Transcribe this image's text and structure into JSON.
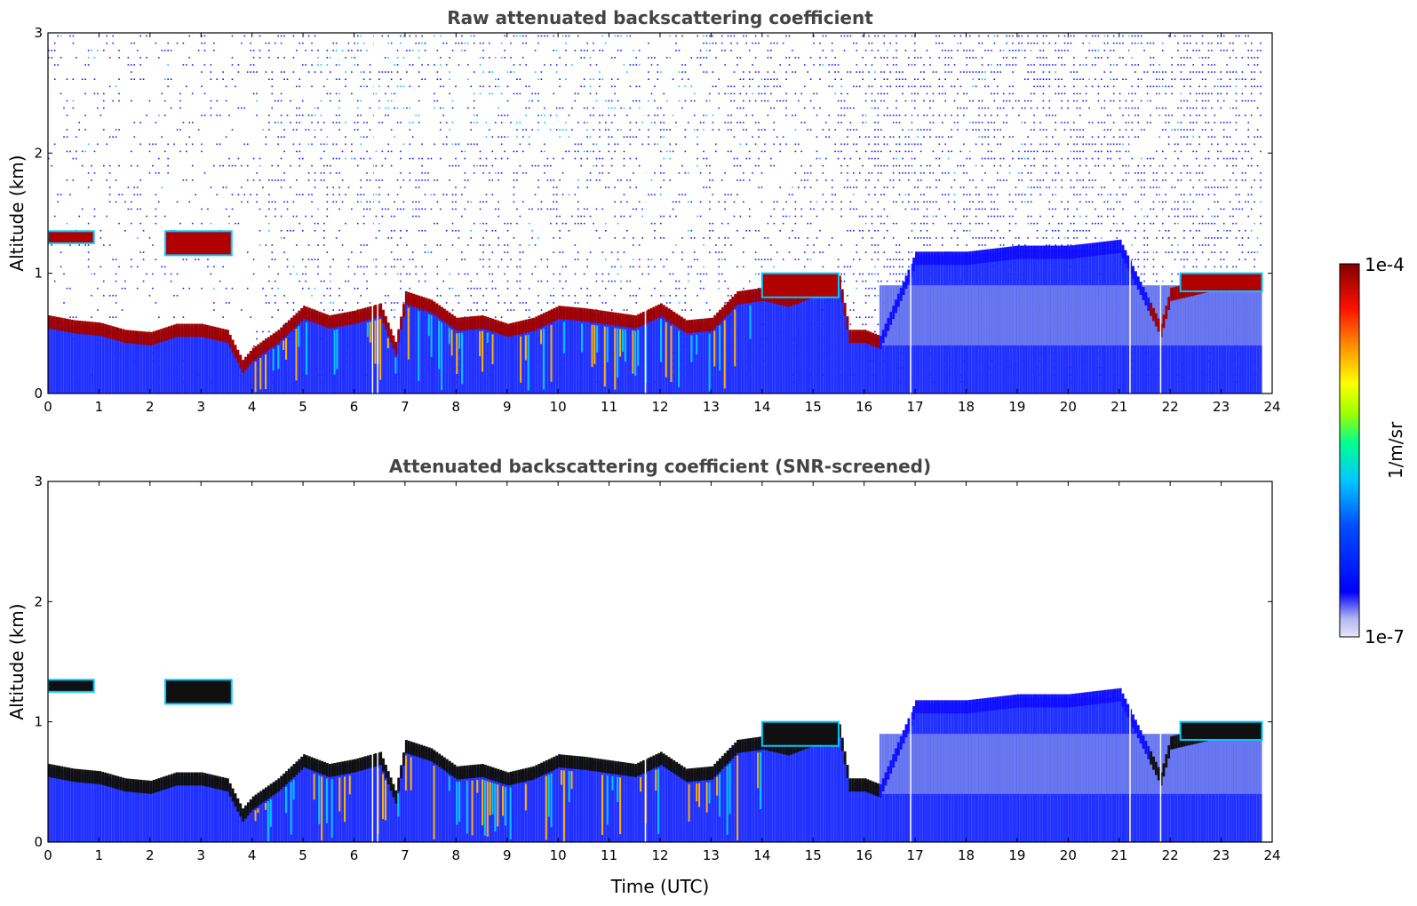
{
  "chart_data": [
    {
      "type": "heatmap",
      "title": "Raw attenuated backscattering coefficient",
      "ylabel": "Altitude (km)",
      "xlabel": "",
      "xlim": [
        0,
        24
      ],
      "ylim": [
        0,
        3
      ],
      "x_ticks": [
        "0",
        "1",
        "2",
        "3",
        "4",
        "5",
        "6",
        "7",
        "8",
        "9",
        "10",
        "11",
        "12",
        "13",
        "14",
        "15",
        "16",
        "17",
        "18",
        "19",
        "20",
        "21",
        "22",
        "23",
        "24"
      ],
      "y_ticks": [
        "0",
        "1",
        "2",
        "3"
      ],
      "noise_above_layer": true,
      "features": {
        "aerosol_layer_top_km": [
          [
            0,
            0.62
          ],
          [
            0.5,
            0.58
          ],
          [
            1,
            0.56
          ],
          [
            1.5,
            0.5
          ],
          [
            2,
            0.48
          ],
          [
            2.5,
            0.55
          ],
          [
            3,
            0.55
          ],
          [
            3.5,
            0.5
          ],
          [
            3.8,
            0.25
          ],
          [
            4,
            0.35
          ],
          [
            4.5,
            0.5
          ],
          [
            5,
            0.7
          ],
          [
            5.5,
            0.62
          ],
          [
            6,
            0.66
          ],
          [
            6.5,
            0.72
          ],
          [
            6.8,
            0.4
          ],
          [
            7,
            0.82
          ],
          [
            7.5,
            0.75
          ],
          [
            8,
            0.6
          ],
          [
            8.5,
            0.62
          ],
          [
            9,
            0.55
          ],
          [
            9.5,
            0.6
          ],
          [
            10,
            0.7
          ],
          [
            10.5,
            0.68
          ],
          [
            11,
            0.65
          ],
          [
            11.5,
            0.62
          ],
          [
            12,
            0.72
          ],
          [
            12.5,
            0.58
          ],
          [
            13,
            0.6
          ],
          [
            13.5,
            0.82
          ],
          [
            14,
            0.85
          ],
          [
            14.5,
            0.8
          ],
          [
            15,
            0.88
          ],
          [
            15.5,
            0.95
          ],
          [
            15.7,
            0.5
          ],
          [
            16,
            0.5
          ],
          [
            16.3,
            0.45
          ],
          [
            17,
            1.15
          ],
          [
            18,
            1.15
          ],
          [
            19,
            1.2
          ],
          [
            20,
            1.2
          ],
          [
            21,
            1.25
          ],
          [
            21.8,
            0.55
          ],
          [
            22,
            0.85
          ],
          [
            23,
            0.95
          ],
          [
            23.8,
            0.95
          ]
        ],
        "elevated_layers": [
          {
            "x": [
              0.0,
              0.9
            ],
            "altitude_km": [
              1.25,
              1.35
            ]
          },
          {
            "x": [
              2.3,
              3.6
            ],
            "altitude_km": [
              1.15,
              1.35
            ]
          },
          {
            "x": [
              14.0,
              15.5
            ],
            "altitude_km": [
              0.8,
              1.0
            ]
          },
          {
            "x": [
              22.2,
              23.8
            ],
            "altitude_km": [
              0.85,
              1.0
            ]
          }
        ],
        "data_gaps_x": [
          6.35,
          6.45,
          11.7,
          16.9,
          21.2,
          21.8
        ]
      }
    },
    {
      "type": "heatmap",
      "title": "Attenuated backscattering coefficient (SNR-screened)",
      "ylabel": "Altitude (km)",
      "xlabel": "Time (UTC)",
      "xlim": [
        0,
        24
      ],
      "ylim": [
        0,
        3
      ],
      "x_ticks": [
        "0",
        "1",
        "2",
        "3",
        "4",
        "5",
        "6",
        "7",
        "8",
        "9",
        "10",
        "11",
        "12",
        "13",
        "14",
        "15",
        "16",
        "17",
        "18",
        "19",
        "20",
        "21",
        "22",
        "23",
        "24"
      ],
      "y_ticks": [
        "0",
        "1",
        "2",
        "3"
      ],
      "noise_above_layer": false
    }
  ],
  "colorbar": {
    "label": "1/m/sr",
    "min_label": "1e-7",
    "max_label": "1e-4",
    "scale": "log",
    "colormap": "jet",
    "colors": [
      "#e6e6fa",
      "#0000ff",
      "#00c8ff",
      "#00ff80",
      "#ffff00",
      "#ff8000",
      "#ff0000",
      "#800000"
    ]
  }
}
